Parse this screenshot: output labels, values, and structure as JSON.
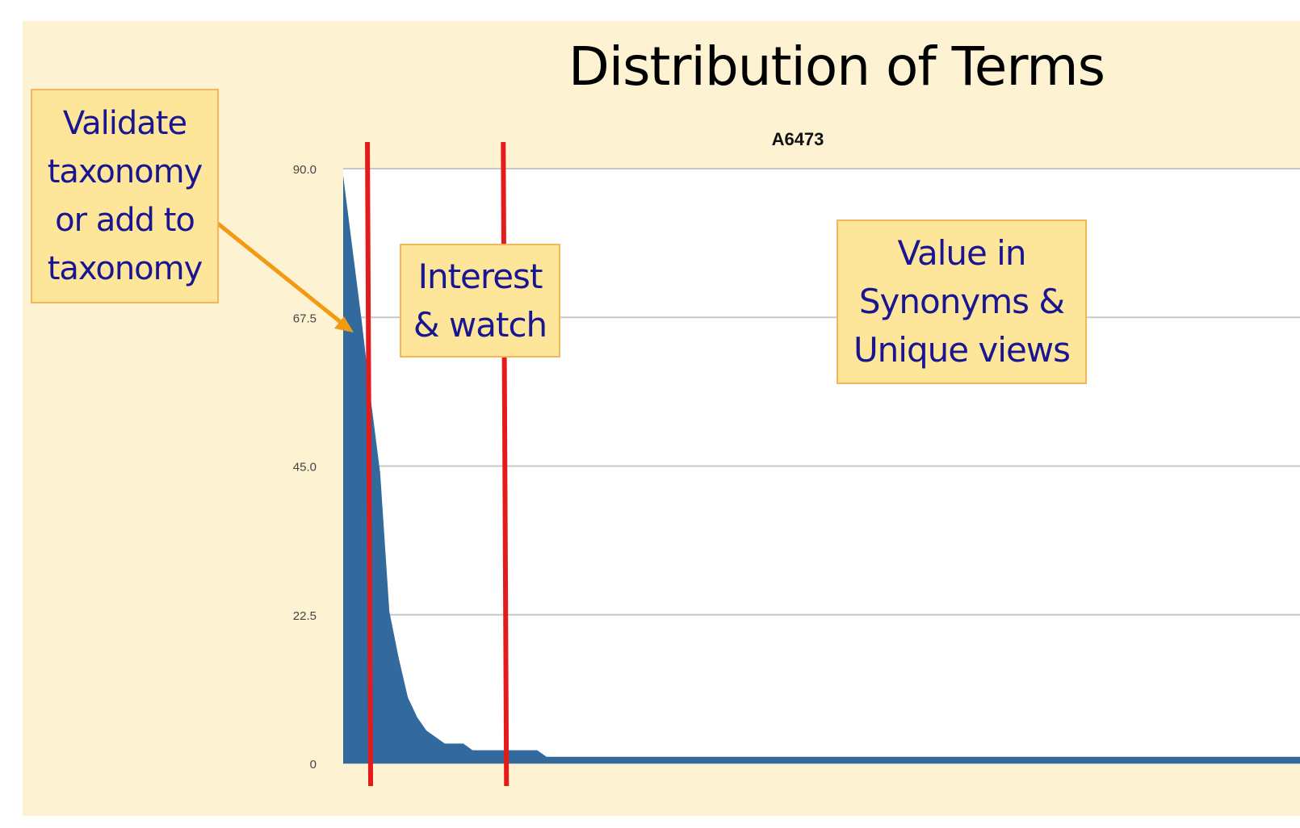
{
  "slide": {
    "title": "Distribution of Terms"
  },
  "chart_data": {
    "type": "area",
    "title": "A6473",
    "xlabel": "",
    "ylabel": "",
    "ylim": [
      0,
      90
    ],
    "yticks": [
      "0",
      "22.5",
      "45.0",
      "67.5",
      "90.0"
    ],
    "grid": true,
    "series": [
      {
        "color": "#336a9d",
        "values": [
          89,
          78,
          67,
          55,
          44,
          23,
          16,
          10,
          7,
          5,
          4,
          3,
          3,
          3,
          2,
          2,
          2,
          2,
          2,
          2,
          2,
          2,
          1,
          1,
          1,
          1,
          1,
          1,
          1,
          1,
          1,
          1,
          1,
          1,
          1,
          1,
          1,
          1,
          1,
          1,
          1,
          1,
          1,
          1,
          1,
          1,
          1,
          1,
          1,
          1,
          1,
          1,
          1,
          1,
          1,
          1,
          1,
          1,
          1,
          1,
          1,
          1,
          1,
          1,
          1,
          1,
          1,
          1,
          1,
          1,
          1,
          1,
          1,
          1,
          1,
          1,
          1,
          1,
          1,
          1,
          1,
          1,
          1,
          1,
          1,
          1,
          1,
          1,
          1,
          1,
          1,
          1,
          1,
          1,
          1,
          1,
          1,
          1,
          1,
          1
        ]
      }
    ],
    "dividers": [
      {
        "color": "#e31b1b",
        "x_index": 2.8
      },
      {
        "color": "#e31b1b",
        "x_index": 17.5
      }
    ]
  },
  "callouts": {
    "validate": {
      "lines": [
        "Validate",
        "taxonomy",
        "or add to",
        "taxonomy"
      ]
    },
    "interest": {
      "lines": [
        "Interest",
        "& watch"
      ]
    },
    "value": {
      "lines": [
        "Value in",
        "Synonyms &",
        "Unique views"
      ]
    }
  },
  "colors": {
    "slide_background": "#fdf2d2",
    "callout_fill": "#fde59a",
    "callout_border": "#f3b65b",
    "callout_text": "#1a1691",
    "arrow": "#f29a12",
    "gridline": "#c8c8c8"
  }
}
